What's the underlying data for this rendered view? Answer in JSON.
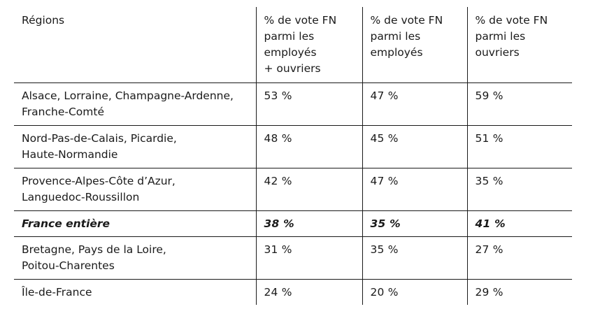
{
  "table": {
    "headers": [
      "Régions",
      "% de vote FN parmi les employés + ouvriers",
      "% de vote FN parmi les employés",
      "% de vote FN parmi les ouvriers"
    ],
    "header_lines": [
      [
        "Régions"
      ],
      [
        "% de vote FN",
        "parmi les",
        "employés",
        "+ ouvriers"
      ],
      [
        "% de vote FN",
        "parmi les",
        "employés"
      ],
      [
        "% de vote FN",
        "parmi les",
        "ouvriers"
      ]
    ],
    "rows": [
      {
        "region_lines": [
          "Alsace, Lorraine, Champagne-Ardenne,",
          "Franche-Comté"
        ],
        "employes_ouvriers": "53 %",
        "employes": "47 %",
        "ouvriers": "59 %",
        "emphasis": false
      },
      {
        "region_lines": [
          "Nord-Pas-de-Calais, Picardie,",
          "Haute-Normandie"
        ],
        "employes_ouvriers": "48 %",
        "employes": "45 %",
        "ouvriers": "51 %",
        "emphasis": false
      },
      {
        "region_lines": [
          "Provence-Alpes-Côte d’Azur,",
          "Languedoc-Roussillon"
        ],
        "employes_ouvriers": "42 %",
        "employes": "47 %",
        "ouvriers": "35 %",
        "emphasis": false
      },
      {
        "region_lines": [
          "France entière"
        ],
        "employes_ouvriers": "38 %",
        "employes": "35 %",
        "ouvriers": "41 %",
        "emphasis": true
      },
      {
        "region_lines": [
          "Bretagne, Pays de la Loire,",
          "Poitou-Charentes"
        ],
        "employes_ouvriers": "31 %",
        "employes": "35 %",
        "ouvriers": "27 %",
        "emphasis": false
      },
      {
        "region_lines": [
          "Île-de-France"
        ],
        "employes_ouvriers": "24 %",
        "employes": "20 %",
        "ouvriers": "29 %",
        "emphasis": false
      }
    ]
  }
}
